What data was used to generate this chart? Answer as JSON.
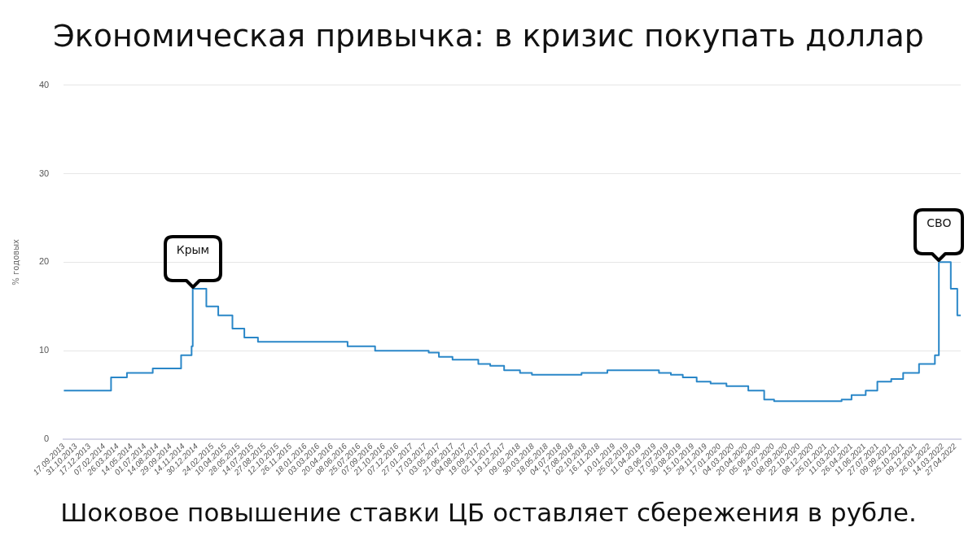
{
  "chart_data": {
    "type": "step",
    "title": "Экономическая привычка: в кризис покупать доллар",
    "ylabel": "% годовых",
    "annotations": [
      {
        "text": "Крым",
        "x": "2014-12-16",
        "y": 17
      },
      {
        "text": "СВО",
        "x": "2022-02-28",
        "y": 20
      },
      "Шоковое повышение ставки ЦБ оставляет сбережения в рубле."
    ],
    "x": [
      "2013-09-17",
      "2014-03-03",
      "2014-04-28",
      "2014-07-28",
      "2014-11-05",
      "2014-12-12",
      "2014-12-16",
      "2015-02-02",
      "2015-03-16",
      "2015-05-05",
      "2015-06-16",
      "2015-08-03",
      "2016-06-14",
      "2016-09-19",
      "2017-03-27",
      "2017-05-02",
      "2017-06-19",
      "2017-09-18",
      "2017-10-30",
      "2017-12-18",
      "2018-02-12",
      "2018-03-26",
      "2018-09-17",
      "2018-12-17",
      "2019-06-17",
      "2019-07-29",
      "2019-09-09",
      "2019-10-28",
      "2019-12-16",
      "2020-02-10",
      "2020-04-27",
      "2020-06-22",
      "2020-07-27",
      "2021-03-22",
      "2021-04-26",
      "2021-06-15",
      "2021-07-26",
      "2021-09-13",
      "2021-10-25",
      "2021-12-20",
      "2022-02-14",
      "2022-02-28",
      "2022-04-11",
      "2022-05-04",
      "2022-05-16"
    ],
    "series": [
      {
        "color": "#2a87c8",
        "values": [
          5.5,
          7,
          7.5,
          8,
          9.5,
          10.5,
          17,
          15,
          14,
          12.5,
          11.5,
          11,
          10.5,
          10,
          9.8,
          9.3,
          9,
          8.5,
          8.3,
          7.8,
          7.5,
          7.3,
          7.5,
          7.8,
          7.5,
          7.3,
          7,
          6.5,
          6.3,
          6,
          5.5,
          4.5,
          4.3,
          4.5,
          5,
          5.5,
          6.5,
          6.8,
          7.5,
          8.5,
          9.5,
          20,
          17,
          14,
          14
        ]
      }
    ],
    "xlim": [
      "2013-09-17",
      "2022-05-16"
    ],
    "xticks": [
      {
        "value": "2013-09-17",
        "label": "17.09.2013"
      },
      {
        "value": "2013-10-31",
        "label": "31.10.2013"
      },
      {
        "value": "2013-12-17",
        "label": "17.12.2013"
      },
      {
        "value": "2014-02-07",
        "label": "07.02.2014"
      },
      {
        "value": "2014-03-26",
        "label": "26.03.2014"
      },
      {
        "value": "2014-05-14",
        "label": "14.05.2014"
      },
      {
        "value": "2014-07-01",
        "label": "01.07.2014"
      },
      {
        "value": "2014-08-14",
        "label": "14.08.2014"
      },
      {
        "value": "2014-09-29",
        "label": "29.09.2014"
      },
      {
        "value": "2014-11-14",
        "label": "14.11.2014"
      },
      {
        "value": "2014-12-30",
        "label": "30.12.2014"
      },
      {
        "value": "2015-02-24",
        "label": "24.02.2015"
      },
      {
        "value": "2015-04-10",
        "label": "10.04.2015"
      },
      {
        "value": "2015-05-28",
        "label": "28.05.2015"
      },
      {
        "value": "2015-07-14",
        "label": "14.07.2015"
      },
      {
        "value": "2015-08-27",
        "label": "27.08.2015"
      },
      {
        "value": "2015-10-12",
        "label": "12.10.2015"
      },
      {
        "value": "2015-11-26",
        "label": "26.11.2015"
      },
      {
        "value": "2016-01-18",
        "label": "18.01.2016"
      },
      {
        "value": "2016-03-03",
        "label": "03.03.2016"
      },
      {
        "value": "2016-04-20",
        "label": "20.04.2016"
      },
      {
        "value": "2016-06-08",
        "label": "08.06.2016"
      },
      {
        "value": "2016-07-25",
        "label": "25.07.2016"
      },
      {
        "value": "2016-09-07",
        "label": "07.09.2016"
      },
      {
        "value": "2016-10-21",
        "label": "21.10.2016"
      },
      {
        "value": "2016-12-07",
        "label": "07.12.2016"
      },
      {
        "value": "2017-01-27",
        "label": "27.01.2017"
      },
      {
        "value": "2017-03-17",
        "label": "17.03.2017"
      },
      {
        "value": "2017-05-03",
        "label": "03.05.2017"
      },
      {
        "value": "2017-06-21",
        "label": "21.06.2017"
      },
      {
        "value": "2017-08-04",
        "label": "04.08.2017"
      },
      {
        "value": "2017-09-19",
        "label": "19.09.2017"
      },
      {
        "value": "2017-11-02",
        "label": "02.11.2017"
      },
      {
        "value": "2017-12-19",
        "label": "19.12.2017"
      },
      {
        "value": "2018-02-09",
        "label": "09.02.2018"
      },
      {
        "value": "2018-03-30",
        "label": "30.03.2018"
      },
      {
        "value": "2018-05-18",
        "label": "18.05.2018"
      },
      {
        "value": "2018-07-04",
        "label": "04.07.2018"
      },
      {
        "value": "2018-08-17",
        "label": "17.08.2018"
      },
      {
        "value": "2018-10-02",
        "label": "02.10.2018"
      },
      {
        "value": "2018-11-16",
        "label": "16.11.2018"
      },
      {
        "value": "2019-01-10",
        "label": "10.01.2019"
      },
      {
        "value": "2019-02-25",
        "label": "25.02.2019"
      },
      {
        "value": "2019-04-11",
        "label": "11.04.2019"
      },
      {
        "value": "2019-06-03",
        "label": "03.06.2019"
      },
      {
        "value": "2019-07-17",
        "label": "17.07.2019"
      },
      {
        "value": "2019-08-30",
        "label": "30.08.2019"
      },
      {
        "value": "2019-10-15",
        "label": "15.10.2019"
      },
      {
        "value": "2019-11-29",
        "label": "29.11.2019"
      },
      {
        "value": "2020-01-17",
        "label": "17.01.2020"
      },
      {
        "value": "2020-03-04",
        "label": "04.03.2020"
      },
      {
        "value": "2020-04-20",
        "label": "20.04.2020"
      },
      {
        "value": "2020-06-05",
        "label": "05.06.2020"
      },
      {
        "value": "2020-07-24",
        "label": "24.07.2020"
      },
      {
        "value": "2020-09-08",
        "label": "08.09.2020"
      },
      {
        "value": "2020-10-22",
        "label": "22.10.2020"
      },
      {
        "value": "2020-12-08",
        "label": "08.12.2020"
      },
      {
        "value": "2021-01-25",
        "label": "25.01.2021"
      },
      {
        "value": "2021-03-11",
        "label": "11.03.2021"
      },
      {
        "value": "2021-04-26",
        "label": "26.04.2021"
      },
      {
        "value": "2021-06-11",
        "label": "11.06.2021"
      },
      {
        "value": "2021-07-27",
        "label": "27.07.2021"
      },
      {
        "value": "2021-09-09",
        "label": "09.09.2021"
      },
      {
        "value": "2021-10-25",
        "label": "25.10.2021"
      },
      {
        "value": "2021-12-09",
        "label": "09.12.2021"
      },
      {
        "value": "2022-01-26",
        "label": "26.01.2022"
      },
      {
        "value": "2022-03-14",
        "label": "14.03.2022"
      },
      {
        "value": "2022-04-27",
        "label": "27.04.2022"
      }
    ],
    "ylim": [
      0,
      40
    ],
    "yticks": [
      0,
      10,
      20,
      30,
      40
    ],
    "grid": "y"
  }
}
